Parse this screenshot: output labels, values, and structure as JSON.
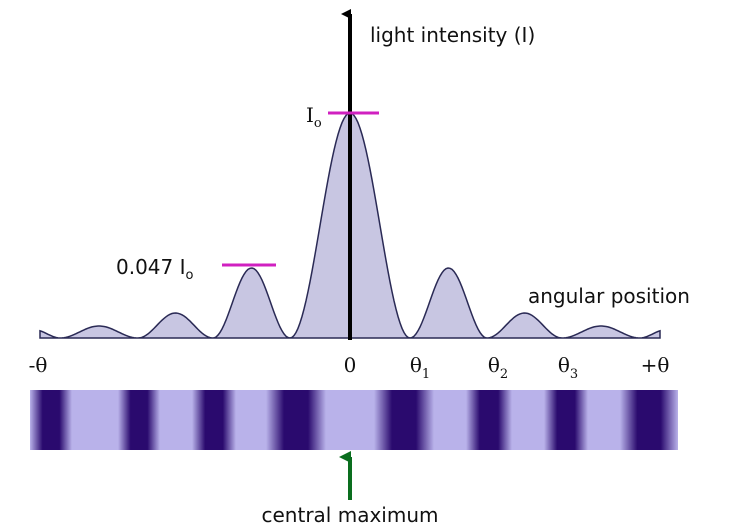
{
  "axis": {
    "y_label": "light intensity (I)",
    "x_label": "angular position"
  },
  "annotations": {
    "peak": {
      "text": "I",
      "sub": "o"
    },
    "secondary": {
      "text": "0.047 I",
      "sub": "o"
    }
  },
  "x_ticks": [
    {
      "text": "-θ"
    },
    {
      "text": "0"
    },
    {
      "text": "θ",
      "sub": "1"
    },
    {
      "text": "θ",
      "sub": "2"
    },
    {
      "text": "θ",
      "sub": "3"
    },
    {
      "text": "+θ"
    }
  ],
  "caption": "central maximum"
}
